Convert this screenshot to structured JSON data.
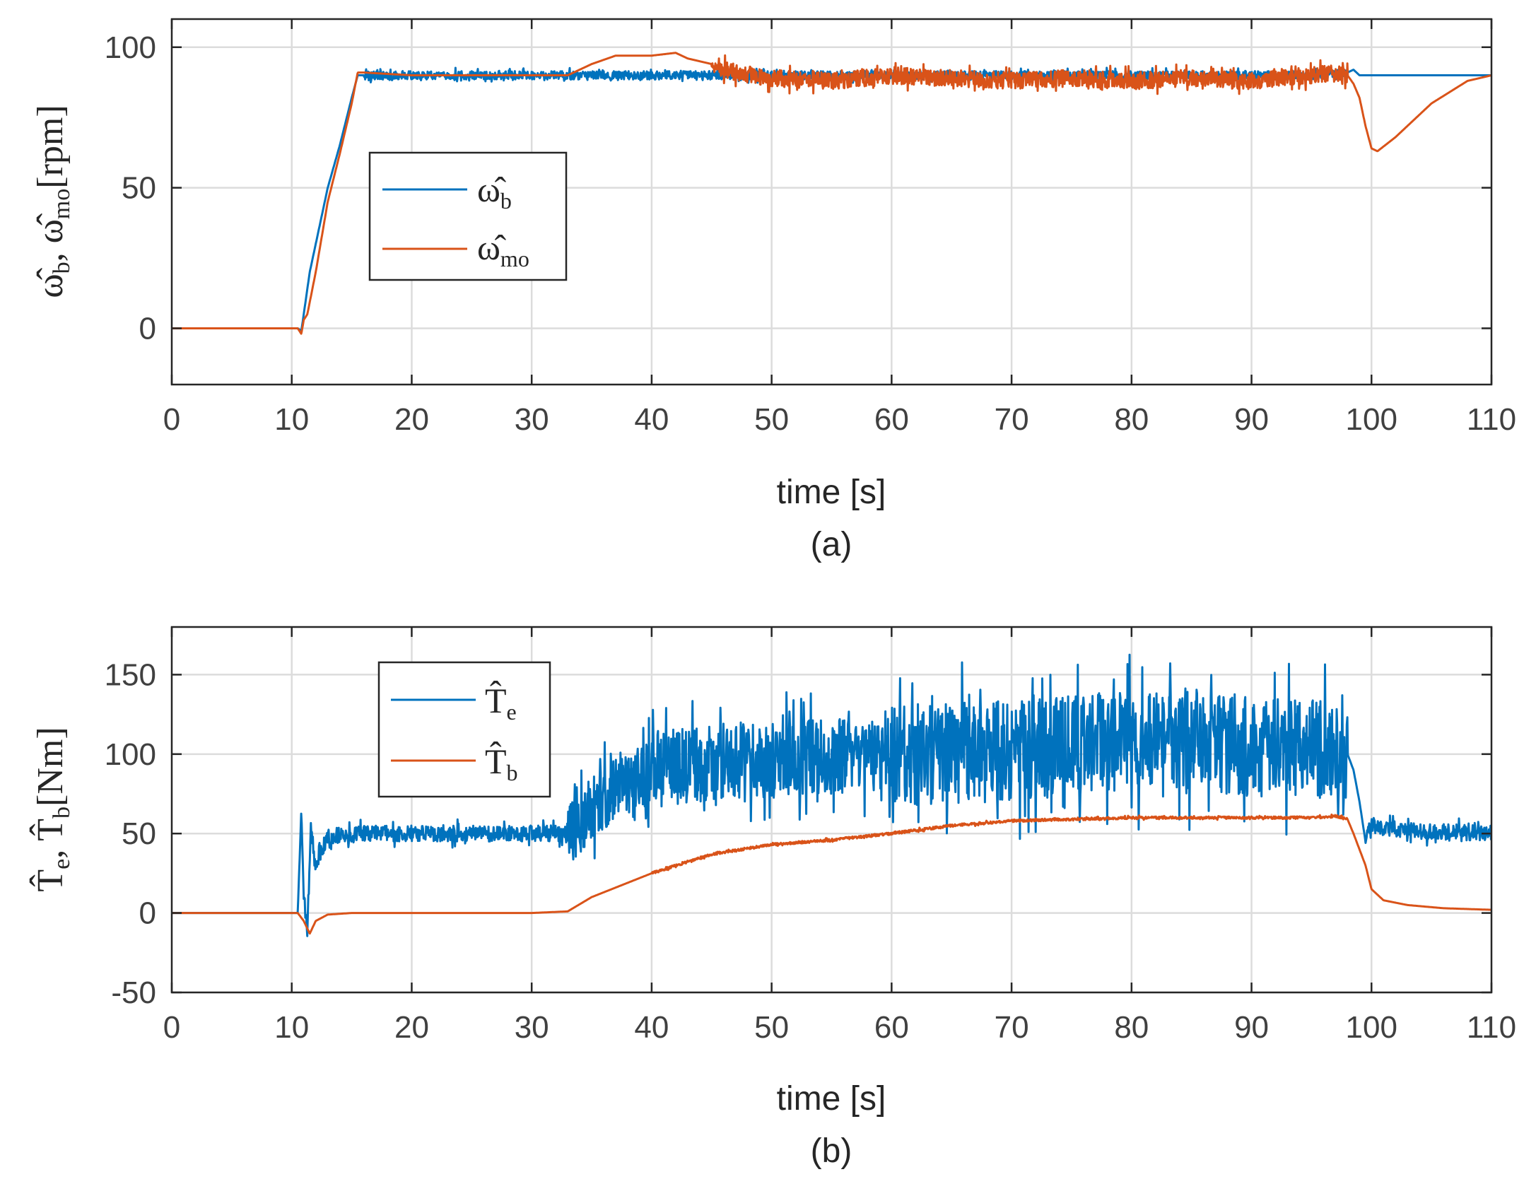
{
  "chart_data": [
    {
      "type": "line",
      "panel_label": "(a)",
      "xlabel": "time [s]",
      "ylabel": {
        "sym1": "ω̂",
        "sub1": "b",
        "sep": ", ",
        "sym2": "ω̂",
        "sub2": "mo",
        "unit": "[rpm]"
      },
      "xlim": [
        0,
        110
      ],
      "ylim": [
        -20,
        110
      ],
      "xticks": [
        "0",
        "10",
        "20",
        "30",
        "40",
        "50",
        "60",
        "70",
        "80",
        "90",
        "100",
        "110"
      ],
      "xtick_values": [
        0,
        10,
        20,
        30,
        40,
        50,
        60,
        70,
        80,
        90,
        100,
        110
      ],
      "yticks": [
        "0",
        "50",
        "100"
      ],
      "ytick_values": [
        0,
        50,
        100
      ],
      "grid": true,
      "legend_position": "center-left",
      "series": [
        {
          "name": "ω̂_b",
          "sym": "ω̂",
          "sub": "b",
          "color": "#0072BD",
          "noise_segments": [
            [
              16,
              98,
              1.5
            ]
          ],
          "x": [
            0,
            10.5,
            10.8,
            11,
            11.5,
            12,
            13,
            14,
            15,
            15.5,
            16,
            20,
            30,
            40,
            50,
            60,
            70,
            80,
            90,
            95,
            98,
            98.5,
            99,
            100,
            110
          ],
          "y": [
            0,
            0,
            -1,
            5,
            20,
            30,
            50,
            65,
            82,
            90,
            90,
            90,
            90,
            90,
            90,
            90,
            90,
            90,
            90,
            90,
            91,
            92,
            90,
            90,
            90
          ]
        },
        {
          "name": "ω̂_mo",
          "sym": "ω̂",
          "sub": "mo",
          "color": "#D95319",
          "noise_segments": [
            [
              45,
              98,
              3
            ]
          ],
          "x": [
            0,
            10.5,
            10.8,
            11,
            11.3,
            12,
            13,
            14,
            15,
            15.5,
            16,
            20,
            30,
            33,
            35,
            37,
            40,
            42,
            43,
            45,
            47,
            50,
            55,
            60,
            65,
            70,
            75,
            80,
            85,
            90,
            95,
            97,
            98,
            98.5,
            99,
            99.5,
            100,
            100.5,
            102,
            105,
            108,
            110
          ],
          "y": [
            0,
            0,
            -2,
            3,
            5,
            20,
            45,
            62,
            80,
            91,
            91,
            90,
            90,
            90,
            94,
            97,
            97,
            98,
            96,
            94,
            91,
            89,
            88,
            90,
            89,
            88,
            89,
            88,
            89,
            88,
            90,
            91,
            90,
            87,
            82,
            72,
            64,
            63,
            68,
            80,
            88,
            90
          ]
        }
      ]
    },
    {
      "type": "line",
      "panel_label": "(b)",
      "xlabel": "time [s]",
      "ylabel": {
        "sym1": "T̂",
        "sub1": "e",
        "sep": ", ",
        "sym2": "T̂",
        "sub2": "b",
        "unit": "[Nm]"
      },
      "xlim": [
        0,
        110
      ],
      "ylim": [
        -50,
        180
      ],
      "xticks": [
        "0",
        "10",
        "20",
        "30",
        "40",
        "50",
        "60",
        "70",
        "80",
        "90",
        "100",
        "110"
      ],
      "xtick_values": [
        0,
        10,
        20,
        30,
        40,
        50,
        60,
        70,
        80,
        90,
        100,
        110
      ],
      "yticks": [
        "-50",
        "0",
        "50",
        "100",
        "150"
      ],
      "ytick_values": [
        -50,
        0,
        50,
        100,
        150
      ],
      "grid": true,
      "legend_position": "upper-left",
      "series": [
        {
          "name": "T̂_e",
          "sym": "T̂",
          "sub": "e",
          "color": "#0072BD",
          "noise_segments": [
            [
              11,
              33,
              5
            ],
            [
              33,
              40,
              20
            ],
            [
              40,
              60,
              24
            ],
            [
              60,
              98,
              32
            ],
            [
              99.5,
              110,
              5
            ]
          ],
          "x": [
            0,
            10.5,
            10.8,
            11,
            11.3,
            11.6,
            12,
            13,
            15,
            20,
            30,
            33,
            35,
            37,
            40,
            45,
            50,
            55,
            60,
            65,
            70,
            75,
            80,
            85,
            90,
            95,
            98,
            98.5,
            99,
            99.5,
            100,
            102,
            110
          ],
          "y": [
            0,
            0,
            65,
            10,
            -10,
            55,
            30,
            48,
            50,
            50,
            50,
            50,
            65,
            80,
            88,
            95,
            97,
            98,
            100,
            100,
            103,
            105,
            108,
            110,
            105,
            105,
            100,
            90,
            70,
            45,
            55,
            52,
            50
          ]
        },
        {
          "name": "T̂_b",
          "sym": "T̂",
          "sub": "b",
          "color": "#D95319",
          "noise_segments": [
            [
              40,
              98,
              0.8
            ]
          ],
          "x": [
            0,
            10.5,
            11,
            11.5,
            12,
            13,
            15,
            20,
            30,
            33,
            35,
            40,
            45,
            50,
            55,
            60,
            65,
            70,
            75,
            80,
            85,
            90,
            95,
            97,
            98,
            98.5,
            99,
            99.5,
            100,
            101,
            103,
            106,
            110
          ],
          "y": [
            0,
            0,
            -5,
            -13,
            -5,
            -1,
            0,
            0,
            0,
            1,
            10,
            25,
            37,
            43,
            46,
            50,
            55,
            58,
            59,
            60,
            60,
            60,
            60,
            61,
            59,
            50,
            40,
            30,
            15,
            8,
            5,
            3,
            2
          ]
        }
      ]
    }
  ]
}
